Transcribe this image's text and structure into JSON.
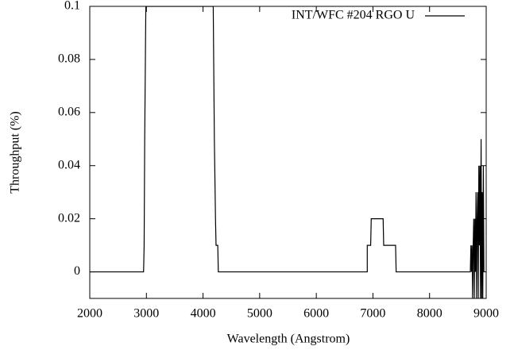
{
  "chart_data": {
    "type": "line",
    "x_label": "Wavelength (Angstrom)",
    "y_label": "Throughput (%)",
    "x": [
      2000,
      2950,
      2960,
      2970,
      2990,
      4180,
      4200,
      4220,
      4230,
      4260,
      4270,
      6900,
      6900,
      6960,
      6970,
      7180,
      7190,
      7400,
      7410,
      8720,
      8730,
      8740,
      8750,
      8760,
      8770,
      8780,
      8790,
      8800,
      8810,
      8820,
      8830,
      8840,
      8850,
      8860,
      8870,
      8880,
      8890,
      8900,
      8910,
      8920,
      8930,
      8940,
      8950,
      8960
    ],
    "series": [
      {
        "name": "INT/WFC #204 RGO U",
        "color": "#000000",
        "values": [
          0,
          0,
          0.01,
          0.05,
          0.1,
          0.1,
          0.05,
          0.02,
          0.01,
          0.01,
          0,
          0,
          0.01,
          0.01,
          0.02,
          0.02,
          0.01,
          0.01,
          0,
          0,
          0.01,
          0,
          0.01,
          -0.01,
          0.01,
          0.02,
          -0.01,
          0.02,
          0,
          0.03,
          -0.01,
          0.02,
          0.03,
          -0.01,
          0.04,
          0.01,
          0.04,
          -0.01,
          0.05,
          -0.01,
          0.03,
          -0.01,
          0.04,
          0
        ]
      }
    ],
    "xlim": [
      2000,
      9000
    ],
    "ylim": [
      -0.01,
      0.1
    ],
    "xticks": [
      2000,
      3000,
      4000,
      5000,
      6000,
      7000,
      8000,
      9000
    ],
    "yticks": [
      0,
      0.02,
      0.04,
      0.06,
      0.08,
      0.1
    ],
    "legend": "top-right"
  }
}
